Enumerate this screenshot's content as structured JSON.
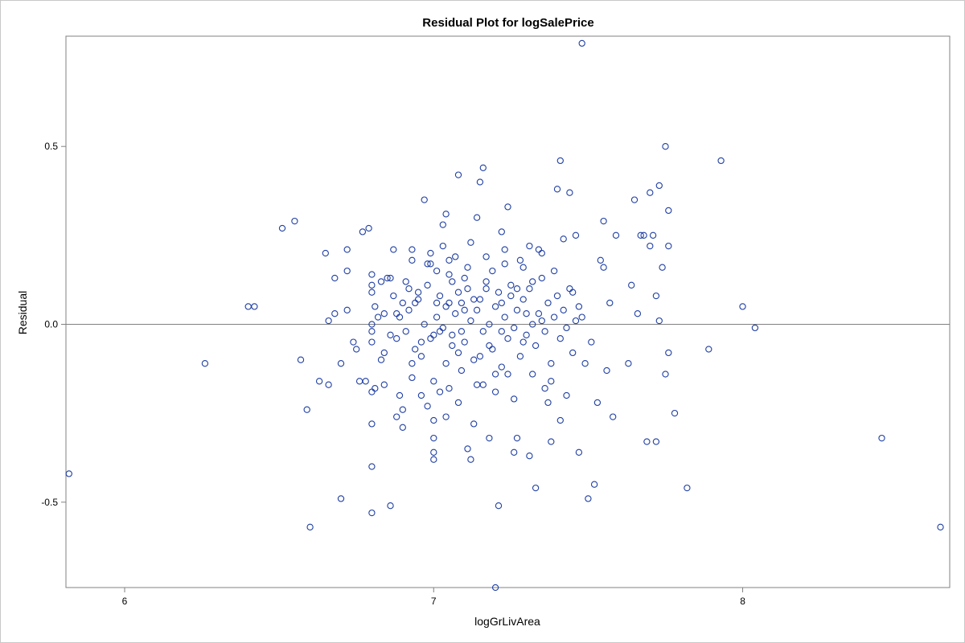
{
  "chart_data": {
    "type": "scatter",
    "title": "Residual Plot for logSalePrice",
    "xlabel": "logGrLivArea",
    "ylabel": "Residual",
    "xlim": [
      5.81,
      8.67
    ],
    "ylim": [
      -0.74,
      0.81
    ],
    "xticks": [
      6,
      7,
      8
    ],
    "xtick_labels": [
      "6",
      "7",
      "8"
    ],
    "yticks": [
      -0.5,
      0.0,
      0.5
    ],
    "ytick_labels": [
      "-0.5",
      "0.0",
      "0.5"
    ],
    "reference_line_y": 0,
    "grid": false,
    "marker_color": "#1f3fa3",
    "axis_color": "#808080",
    "series": [
      {
        "marker": "open-circle",
        "points": [
          [
            5.82,
            -0.42
          ],
          [
            6.26,
            -0.11
          ],
          [
            6.4,
            0.05
          ],
          [
            6.42,
            0.05
          ],
          [
            6.51,
            0.27
          ],
          [
            6.55,
            0.29
          ],
          [
            6.57,
            -0.1
          ],
          [
            6.59,
            -0.24
          ],
          [
            6.6,
            -0.57
          ],
          [
            6.63,
            -0.16
          ],
          [
            6.65,
            0.2
          ],
          [
            6.66,
            0.01
          ],
          [
            6.66,
            -0.17
          ],
          [
            6.68,
            0.13
          ],
          [
            6.68,
            0.03
          ],
          [
            6.7,
            -0.11
          ],
          [
            6.7,
            -0.49
          ],
          [
            6.72,
            0.15
          ],
          [
            6.72,
            0.21
          ],
          [
            6.72,
            0.04
          ],
          [
            6.74,
            -0.05
          ],
          [
            6.75,
            -0.07
          ],
          [
            6.76,
            -0.16
          ],
          [
            6.77,
            0.26
          ],
          [
            6.78,
            -0.16
          ],
          [
            6.79,
            0.27
          ],
          [
            6.8,
            -0.28
          ],
          [
            6.8,
            0.14
          ],
          [
            6.8,
            0.11
          ],
          [
            6.8,
            0.09
          ],
          [
            6.8,
            0.0
          ],
          [
            6.8,
            -0.02
          ],
          [
            6.8,
            -0.05
          ],
          [
            6.8,
            -0.19
          ],
          [
            6.8,
            -0.4
          ],
          [
            6.8,
            -0.53
          ],
          [
            6.81,
            0.05
          ],
          [
            6.81,
            -0.18
          ],
          [
            6.82,
            0.02
          ],
          [
            6.83,
            -0.1
          ],
          [
            6.84,
            -0.17
          ],
          [
            6.84,
            -0.08
          ],
          [
            6.85,
            0.13
          ],
          [
            6.86,
            -0.51
          ],
          [
            6.86,
            -0.03
          ],
          [
            6.87,
            0.21
          ],
          [
            6.88,
            0.03
          ],
          [
            6.88,
            -0.26
          ],
          [
            6.89,
            -0.2
          ],
          [
            6.9,
            -0.29
          ],
          [
            6.9,
            -0.24
          ],
          [
            6.9,
            0.06
          ],
          [
            6.91,
            0.12
          ],
          [
            6.92,
            0.1
          ],
          [
            6.93,
            0.18
          ],
          [
            6.93,
            0.21
          ],
          [
            6.93,
            -0.11
          ],
          [
            6.94,
            0.06
          ],
          [
            6.95,
            0.07
          ],
          [
            6.96,
            -0.05
          ],
          [
            6.96,
            -0.09
          ],
          [
            6.97,
            0.35
          ],
          [
            6.98,
            0.17
          ],
          [
            6.98,
            -0.23
          ],
          [
            6.99,
            0.2
          ],
          [
            7.0,
            -0.03
          ],
          [
            7.0,
            -0.16
          ],
          [
            7.0,
            -0.27
          ],
          [
            7.0,
            -0.32
          ],
          [
            7.0,
            -0.36
          ],
          [
            7.0,
            -0.38
          ],
          [
            7.01,
            0.15
          ],
          [
            7.01,
            0.06
          ],
          [
            7.02,
            -0.02
          ],
          [
            7.03,
            0.22
          ],
          [
            7.03,
            0.28
          ],
          [
            7.04,
            0.31
          ],
          [
            7.04,
            -0.11
          ],
          [
            7.05,
            0.06
          ],
          [
            7.05,
            -0.18
          ],
          [
            7.06,
            0.12
          ],
          [
            7.06,
            -0.06
          ],
          [
            7.07,
            0.19
          ],
          [
            7.08,
            0.09
          ],
          [
            7.08,
            0.42
          ],
          [
            7.09,
            -0.02
          ],
          [
            7.09,
            -0.13
          ],
          [
            7.1,
            0.13
          ],
          [
            7.1,
            0.04
          ],
          [
            7.11,
            -0.35
          ],
          [
            7.12,
            0.23
          ],
          [
            7.12,
            -0.38
          ],
          [
            7.13,
            0.07
          ],
          [
            7.14,
            0.3
          ],
          [
            7.15,
            0.4
          ],
          [
            7.15,
            -0.09
          ],
          [
            7.16,
            0.44
          ],
          [
            7.16,
            -0.17
          ],
          [
            7.17,
            0.1
          ],
          [
            7.18,
            -0.32
          ],
          [
            7.18,
            -0.06
          ],
          [
            7.19,
            0.15
          ],
          [
            7.2,
            -0.14
          ],
          [
            7.2,
            -0.74
          ],
          [
            7.21,
            -0.51
          ],
          [
            7.22,
            0.06
          ],
          [
            7.22,
            -0.02
          ],
          [
            7.23,
            0.21
          ],
          [
            7.24,
            0.33
          ],
          [
            7.24,
            -0.14
          ],
          [
            7.25,
            0.08
          ],
          [
            7.26,
            -0.36
          ],
          [
            7.27,
            0.1
          ],
          [
            7.27,
            -0.32
          ],
          [
            7.28,
            0.18
          ],
          [
            7.29,
            -0.05
          ],
          [
            7.3,
            0.03
          ],
          [
            7.31,
            -0.37
          ],
          [
            7.32,
            0.12
          ],
          [
            7.33,
            -0.46
          ],
          [
            7.34,
            0.21
          ],
          [
            7.35,
            0.01
          ],
          [
            7.36,
            -0.18
          ],
          [
            7.37,
            -0.22
          ],
          [
            7.38,
            -0.33
          ],
          [
            7.39,
            0.15
          ],
          [
            7.4,
            0.38
          ],
          [
            7.41,
            0.46
          ],
          [
            7.41,
            -0.27
          ],
          [
            7.42,
            0.24
          ],
          [
            7.43,
            -0.2
          ],
          [
            7.44,
            0.37
          ],
          [
            7.45,
            0.09
          ],
          [
            7.46,
            0.25
          ],
          [
            7.47,
            -0.36
          ],
          [
            7.48,
            0.02
          ],
          [
            7.48,
            0.79
          ],
          [
            7.49,
            -0.11
          ],
          [
            7.5,
            -0.49
          ],
          [
            7.51,
            -0.05
          ],
          [
            7.52,
            -0.45
          ],
          [
            7.53,
            -0.22
          ],
          [
            7.54,
            0.18
          ],
          [
            7.55,
            0.16
          ],
          [
            7.55,
            0.29
          ],
          [
            7.56,
            -0.13
          ],
          [
            7.57,
            0.06
          ],
          [
            7.58,
            -0.26
          ],
          [
            7.59,
            0.25
          ],
          [
            7.63,
            -0.11
          ],
          [
            7.64,
            0.11
          ],
          [
            7.65,
            0.35
          ],
          [
            7.66,
            0.03
          ],
          [
            7.67,
            0.25
          ],
          [
            7.68,
            0.25
          ],
          [
            7.69,
            -0.33
          ],
          [
            7.7,
            0.37
          ],
          [
            7.7,
            0.22
          ],
          [
            7.71,
            0.25
          ],
          [
            7.72,
            0.08
          ],
          [
            7.72,
            -0.33
          ],
          [
            7.73,
            0.01
          ],
          [
            7.73,
            0.39
          ],
          [
            7.74,
            0.16
          ],
          [
            7.75,
            0.5
          ],
          [
            7.75,
            -0.14
          ],
          [
            7.76,
            0.32
          ],
          [
            7.76,
            0.22
          ],
          [
            7.76,
            -0.08
          ],
          [
            7.78,
            -0.25
          ],
          [
            7.82,
            -0.46
          ],
          [
            7.89,
            -0.07
          ],
          [
            7.93,
            0.46
          ],
          [
            8.0,
            0.05
          ],
          [
            8.04,
            -0.01
          ],
          [
            8.45,
            -0.32
          ],
          [
            8.64,
            -0.57
          ],
          [
            6.83,
            0.12
          ],
          [
            6.84,
            0.03
          ],
          [
            6.86,
            0.13
          ],
          [
            6.87,
            0.08
          ],
          [
            6.88,
            -0.04
          ],
          [
            6.89,
            0.02
          ],
          [
            6.91,
            -0.02
          ],
          [
            6.92,
            0.04
          ],
          [
            6.94,
            -0.07
          ],
          [
            6.95,
            0.09
          ],
          [
            6.97,
            0.0
          ],
          [
            6.98,
            0.11
          ],
          [
            6.99,
            -0.04
          ],
          [
            7.01,
            0.02
          ],
          [
            7.02,
            0.08
          ],
          [
            7.03,
            -0.01
          ],
          [
            7.04,
            0.05
          ],
          [
            7.05,
            0.14
          ],
          [
            7.06,
            -0.03
          ],
          [
            7.07,
            0.03
          ],
          [
            7.08,
            -0.08
          ],
          [
            7.09,
            0.06
          ],
          [
            7.1,
            -0.05
          ],
          [
            7.11,
            0.1
          ],
          [
            7.12,
            0.01
          ],
          [
            7.13,
            -0.1
          ],
          [
            7.14,
            0.04
          ],
          [
            7.15,
            0.07
          ],
          [
            7.16,
            -0.02
          ],
          [
            7.17,
            0.12
          ],
          [
            7.18,
            0.0
          ],
          [
            7.19,
            -0.07
          ],
          [
            7.2,
            0.05
          ],
          [
            7.21,
            0.09
          ],
          [
            7.22,
            -0.12
          ],
          [
            7.23,
            0.02
          ],
          [
            7.24,
            -0.04
          ],
          [
            7.25,
            0.11
          ],
          [
            7.26,
            -0.01
          ],
          [
            7.27,
            0.04
          ],
          [
            7.28,
            -0.09
          ],
          [
            7.29,
            0.07
          ],
          [
            7.3,
            -0.03
          ],
          [
            7.31,
            0.1
          ],
          [
            7.32,
            0.0
          ],
          [
            7.33,
            -0.06
          ],
          [
            7.34,
            0.03
          ],
          [
            7.35,
            0.13
          ],
          [
            7.36,
            -0.02
          ],
          [
            7.37,
            0.06
          ],
          [
            7.38,
            -0.11
          ],
          [
            7.39,
            0.02
          ],
          [
            7.4,
            0.08
          ],
          [
            7.41,
            -0.04
          ],
          [
            7.42,
            0.04
          ],
          [
            7.43,
            -0.01
          ],
          [
            7.44,
            0.1
          ],
          [
            7.45,
            -0.08
          ],
          [
            7.46,
            0.01
          ],
          [
            7.47,
            0.05
          ],
          [
            6.93,
            -0.15
          ],
          [
            6.96,
            -0.2
          ],
          [
            6.99,
            0.17
          ],
          [
            7.02,
            -0.19
          ],
          [
            7.05,
            0.18
          ],
          [
            7.08,
            -0.22
          ],
          [
            7.11,
            0.16
          ],
          [
            7.14,
            -0.17
          ],
          [
            7.17,
            0.19
          ],
          [
            7.2,
            -0.19
          ],
          [
            7.23,
            0.17
          ],
          [
            7.26,
            -0.21
          ],
          [
            7.29,
            0.16
          ],
          [
            7.32,
            -0.14
          ],
          [
            7.35,
            0.2
          ],
          [
            7.38,
            -0.16
          ],
          [
            7.04,
            -0.26
          ],
          [
            7.13,
            -0.28
          ],
          [
            7.22,
            0.26
          ],
          [
            7.31,
            0.22
          ]
        ]
      }
    ]
  }
}
